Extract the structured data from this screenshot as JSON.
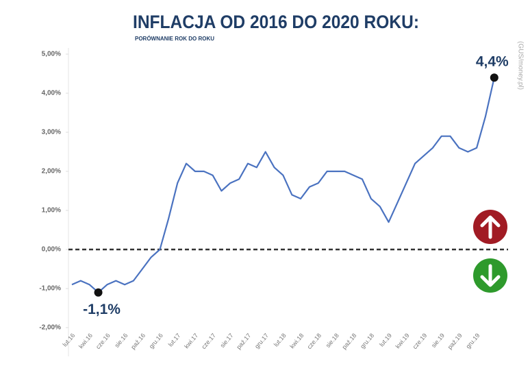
{
  "chart_data": {
    "type": "line",
    "title": "INFLACJA OD 2016 DO 2020 ROKU:",
    "subtitle": "PORÓWNANIE ROK DO ROKU",
    "source": "(GUS/money.pl)",
    "categories": [
      "lut.16",
      null,
      "kwi.16",
      null,
      "cze.16",
      null,
      "sie.16",
      null,
      "paź.16",
      null,
      "gru.16",
      null,
      "lut.17",
      null,
      "kwi.17",
      null,
      "cze.17",
      null,
      "sie.17",
      null,
      "paź.17",
      null,
      "gru.17",
      null,
      "lut.18",
      null,
      "kwi.18",
      null,
      "cze.18",
      null,
      "sie.18",
      null,
      "paź.18",
      null,
      "gru.18",
      null,
      "lut.19",
      null,
      "kwi.19",
      null,
      "cze.19",
      null,
      "sie.19",
      null,
      "paź.19",
      null,
      "gru.19",
      null,
      null
    ],
    "series": [
      {
        "name": "Inflacja",
        "color": "#4a72c0",
        "values": [
          -0.9,
          -0.8,
          -0.9,
          -1.1,
          -0.9,
          -0.8,
          -0.9,
          -0.8,
          -0.5,
          -0.2,
          0.0,
          0.8,
          1.7,
          2.2,
          2.0,
          2.0,
          1.9,
          1.5,
          1.7,
          1.8,
          2.2,
          2.1,
          2.5,
          2.1,
          1.9,
          1.4,
          1.3,
          1.6,
          1.7,
          2.0,
          2.0,
          2.0,
          1.9,
          1.8,
          1.3,
          1.1,
          0.7,
          1.2,
          1.7,
          2.2,
          2.4,
          2.6,
          2.9,
          2.9,
          2.6,
          2.5,
          2.6,
          3.4,
          4.4
        ],
        "value_labels": [
          null,
          null,
          null,
          "-1,1%",
          null,
          null,
          null,
          null,
          null,
          null,
          null,
          null,
          null,
          null,
          null,
          null,
          null,
          null,
          null,
          null,
          null,
          null,
          null,
          null,
          null,
          null,
          null,
          null,
          null,
          null,
          null,
          null,
          null,
          null,
          null,
          null,
          null,
          null,
          null,
          null,
          null,
          null,
          null,
          null,
          null,
          null,
          null,
          null,
          "4,4%"
        ]
      }
    ],
    "ylim": [
      -2,
      5
    ],
    "yticks": [
      {
        "value": -2,
        "label": "-2,00%"
      },
      {
        "value": -1,
        "label": "-1,00%"
      },
      {
        "value": 0,
        "label": "0,00%"
      },
      {
        "value": 1,
        "label": "1,00%"
      },
      {
        "value": 2,
        "label": "2,00%"
      },
      {
        "value": 3,
        "label": "3,00%"
      },
      {
        "value": 4,
        "label": "4,00%"
      },
      {
        "value": 5,
        "label": "5,00%"
      }
    ]
  }
}
